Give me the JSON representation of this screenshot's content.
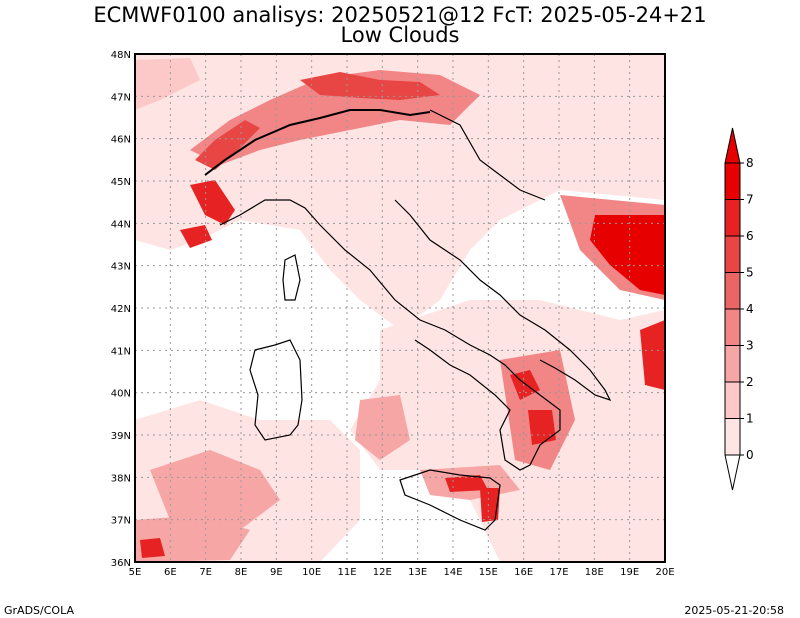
{
  "title_line1": "ECMWF0100 analisys: 20250521@12 FcT: 2025-05-24+21",
  "title_line2": "Low Clouds",
  "footer_left": "GrADS/COLA",
  "footer_right": "2025-05-21-20:58",
  "map": {
    "lon_range": [
      5,
      20
    ],
    "lat_range": [
      36,
      48
    ],
    "lat_ticks": [
      "48N",
      "47N",
      "46N",
      "45N",
      "44N",
      "43N",
      "42N",
      "41N",
      "40N",
      "39N",
      "38N",
      "37N",
      "36N"
    ],
    "lon_ticks": [
      "5E",
      "6E",
      "7E",
      "8E",
      "9E",
      "10E",
      "11E",
      "12E",
      "13E",
      "14E",
      "15E",
      "16E",
      "17E",
      "18E",
      "19E",
      "20E"
    ],
    "grid": "dotted"
  },
  "colorbar": {
    "levels": [
      "0",
      "1",
      "2",
      "3",
      "4",
      "5",
      "6",
      "7",
      "8"
    ],
    "colors": [
      "#ffffff",
      "#ffe4e4",
      "#fcc8c8",
      "#f7a6a6",
      "#f28585",
      "#ec6565",
      "#e84545",
      "#e62222",
      "#e60000"
    ]
  }
}
